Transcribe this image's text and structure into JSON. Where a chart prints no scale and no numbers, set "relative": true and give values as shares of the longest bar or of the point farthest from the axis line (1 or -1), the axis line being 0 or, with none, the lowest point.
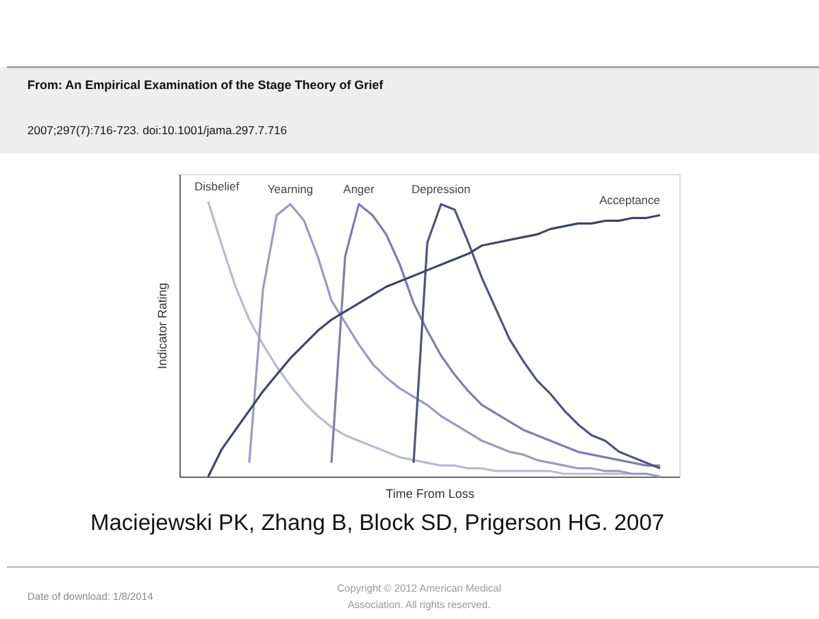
{
  "chart_data": {
    "type": "line",
    "relative": true,
    "title": "From: An Empirical Examination of the Stage Theory of Grief",
    "xlabel": "Time From Loss",
    "ylabel": "Indicator Rating",
    "categories": [
      null,
      null,
      null,
      null,
      null,
      null,
      null,
      null,
      null,
      null,
      null,
      null,
      null,
      null,
      null,
      null,
      null,
      null,
      null,
      null,
      null,
      null,
      null,
      null,
      null,
      null,
      null,
      null,
      null,
      null,
      null,
      null,
      null,
      null,
      null,
      null
    ],
    "series": [
      {
        "name": "Disbelief",
        "color": "#b9b9d3",
        "values": [
          null,
          null,
          1.0,
          0.84,
          0.69,
          0.57,
          0.48,
          0.4,
          0.33,
          0.27,
          0.22,
          0.18,
          0.15,
          0.13,
          0.11,
          0.09,
          0.07,
          0.06,
          0.05,
          0.04,
          0.04,
          0.03,
          0.03,
          0.02,
          0.02,
          0.02,
          0.02,
          0.02,
          0.01,
          0.01,
          0.01,
          0.01,
          0.01,
          0.01,
          0.01,
          0.0
        ]
      },
      {
        "name": "Yearning",
        "color": "#9a9abf",
        "values": [
          null,
          null,
          null,
          null,
          null,
          0.05,
          0.68,
          0.95,
          0.99,
          0.93,
          0.8,
          0.64,
          0.56,
          0.48,
          0.41,
          0.36,
          0.32,
          0.29,
          0.26,
          0.22,
          0.19,
          0.16,
          0.13,
          0.11,
          0.09,
          0.08,
          0.06,
          0.05,
          0.04,
          0.03,
          0.03,
          0.02,
          0.02,
          0.01,
          0.01,
          0.0
        ]
      },
      {
        "name": "Anger",
        "color": "#7e7ea8",
        "values": [
          null,
          null,
          null,
          null,
          null,
          null,
          null,
          null,
          null,
          null,
          null,
          0.05,
          0.8,
          0.99,
          0.95,
          0.88,
          0.77,
          0.63,
          0.53,
          0.44,
          0.37,
          0.31,
          0.26,
          0.23,
          0.2,
          0.17,
          0.15,
          0.13,
          0.11,
          0.09,
          0.08,
          0.07,
          0.06,
          0.05,
          0.04,
          0.04
        ]
      },
      {
        "name": "Depression",
        "color": "#4e5578",
        "values": [
          null,
          null,
          null,
          null,
          null,
          null,
          null,
          null,
          null,
          null,
          null,
          null,
          null,
          null,
          null,
          null,
          null,
          0.05,
          0.85,
          0.99,
          0.97,
          0.85,
          0.72,
          0.61,
          0.5,
          0.42,
          0.35,
          0.3,
          0.24,
          0.19,
          0.15,
          0.13,
          0.09,
          0.07,
          0.05,
          0.03
        ]
      },
      {
        "name": "Acceptance",
        "color": "#3e4566",
        "values": [
          null,
          null,
          0.0,
          0.1,
          0.17,
          0.24,
          0.31,
          0.37,
          0.43,
          0.48,
          0.53,
          0.57,
          0.6,
          0.63,
          0.66,
          0.69,
          0.71,
          0.73,
          0.75,
          0.77,
          0.79,
          0.81,
          0.84,
          0.85,
          0.86,
          0.87,
          0.88,
          0.9,
          0.91,
          0.92,
          0.92,
          0.93,
          0.93,
          0.94,
          0.94,
          0.95
        ]
      }
    ],
    "annotations": [
      "2007;297(7):716-723. doi:10.1001/jama.297.7.716",
      "Maciejewski PK, Zhang B, Block SD, Prigerson HG. 2007",
      "Date of download:  1/8/2014",
      "Copyright © 2012 American Medical\nAssociation. All rights reserved."
    ],
    "marker": "none",
    "line_style": "solid"
  }
}
